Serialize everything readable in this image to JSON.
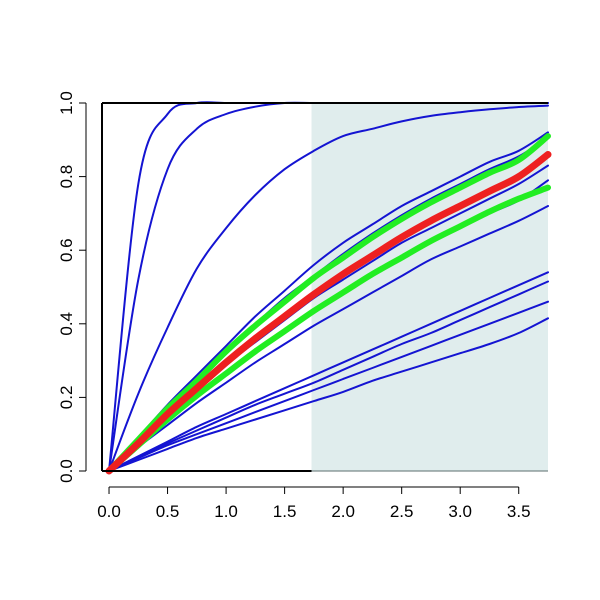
{
  "chart_data": {
    "type": "line",
    "title": "",
    "xlabel": "",
    "ylabel": "",
    "xlim": [
      -0.06,
      3.75
    ],
    "ylim": [
      0,
      1
    ],
    "grid": false,
    "legend": "none",
    "x_ticks": [
      0.0,
      0.5,
      1.0,
      1.5,
      2.0,
      2.5,
      3.0,
      3.5
    ],
    "x_tick_labels": [
      "0.0",
      "0.5",
      "1.0",
      "1.5",
      "2.0",
      "2.5",
      "3.0",
      "3.5"
    ],
    "y_ticks": [
      0.0,
      0.2,
      0.4,
      0.6,
      0.8,
      1.0
    ],
    "y_tick_labels": [
      "0.0",
      "0.2",
      "0.4",
      "0.6",
      "0.8",
      "1.0"
    ],
    "shaded_region": {
      "x_from": 1.73,
      "x_to": 3.75,
      "color": "#e0eded"
    },
    "colors": {
      "curves": "#1414d2",
      "band": "#22ee22",
      "mean": "#ee2020"
    },
    "x": [
      0.0,
      0.25,
      0.5,
      0.75,
      1.0,
      1.25,
      1.5,
      1.75,
      2.0,
      2.25,
      2.5,
      2.75,
      3.0,
      3.25,
      3.5,
      3.75
    ],
    "curves": [
      {
        "style": "thin",
        "y": [
          0.0,
          0.78,
          0.97,
          1.0,
          1.0,
          1.0,
          1.0,
          1.0,
          1.0,
          1.0,
          1.0,
          1.0,
          1.0,
          1.0,
          1.0,
          1.0
        ]
      },
      {
        "style": "thin",
        "y": [
          0.0,
          0.52,
          0.82,
          0.93,
          0.97,
          0.99,
          1.0,
          1.0,
          1.0,
          1.0,
          1.0,
          1.0,
          1.0,
          1.0,
          1.0,
          1.0
        ]
      },
      {
        "style": "thin",
        "y": [
          0.0,
          0.21,
          0.39,
          0.55,
          0.66,
          0.75,
          0.82,
          0.87,
          0.91,
          0.93,
          0.95,
          0.965,
          0.975,
          0.983,
          0.989,
          0.993
        ]
      },
      {
        "style": "thin",
        "y": [
          0.0,
          0.09,
          0.18,
          0.26,
          0.34,
          0.42,
          0.49,
          0.56,
          0.62,
          0.67,
          0.72,
          0.76,
          0.8,
          0.84,
          0.87,
          0.92
        ]
      },
      {
        "style": "thin",
        "y": [
          0.0,
          0.085,
          0.17,
          0.25,
          0.33,
          0.4,
          0.47,
          0.53,
          0.59,
          0.645,
          0.695,
          0.74,
          0.78,
          0.82,
          0.855,
          0.905
        ]
      },
      {
        "style": "thin",
        "y": [
          0.0,
          0.075,
          0.15,
          0.22,
          0.29,
          0.35,
          0.41,
          0.47,
          0.52,
          0.57,
          0.62,
          0.66,
          0.7,
          0.74,
          0.78,
          0.83
        ]
      },
      {
        "style": "thin",
        "y": [
          0.0,
          0.07,
          0.135,
          0.2,
          0.26,
          0.32,
          0.375,
          0.43,
          0.48,
          0.53,
          0.575,
          0.62,
          0.66,
          0.7,
          0.735,
          0.79
        ]
      },
      {
        "style": "thin",
        "y": [
          0.0,
          0.065,
          0.125,
          0.185,
          0.24,
          0.295,
          0.345,
          0.395,
          0.44,
          0.485,
          0.53,
          0.575,
          0.61,
          0.645,
          0.68,
          0.72
        ]
      },
      {
        "style": "thin",
        "y": [
          0.0,
          0.04,
          0.08,
          0.12,
          0.155,
          0.19,
          0.225,
          0.26,
          0.295,
          0.33,
          0.365,
          0.4,
          0.435,
          0.47,
          0.505,
          0.54
        ]
      },
      {
        "style": "thin",
        "y": [
          0.0,
          0.038,
          0.075,
          0.11,
          0.145,
          0.18,
          0.21,
          0.24,
          0.275,
          0.31,
          0.345,
          0.375,
          0.41,
          0.445,
          0.48,
          0.515
        ]
      },
      {
        "style": "thin",
        "y": [
          0.0,
          0.035,
          0.07,
          0.1,
          0.13,
          0.16,
          0.19,
          0.22,
          0.25,
          0.28,
          0.31,
          0.34,
          0.37,
          0.4,
          0.43,
          0.46
        ]
      },
      {
        "style": "thin",
        "y": [
          0.0,
          0.03,
          0.06,
          0.09,
          0.115,
          0.14,
          0.165,
          0.19,
          0.215,
          0.245,
          0.27,
          0.295,
          0.32,
          0.345,
          0.375,
          0.415
        ]
      },
      {
        "style": "band",
        "y": [
          0.0,
          0.085,
          0.17,
          0.245,
          0.325,
          0.395,
          0.46,
          0.525,
          0.58,
          0.635,
          0.685,
          0.73,
          0.77,
          0.81,
          0.845,
          0.91
        ]
      },
      {
        "style": "band",
        "y": [
          0.0,
          0.07,
          0.14,
          0.205,
          0.265,
          0.325,
          0.38,
          0.435,
          0.485,
          0.535,
          0.58,
          0.625,
          0.665,
          0.705,
          0.74,
          0.77
        ]
      },
      {
        "style": "mean",
        "y": [
          0.0,
          0.075,
          0.155,
          0.225,
          0.295,
          0.36,
          0.42,
          0.48,
          0.535,
          0.585,
          0.635,
          0.68,
          0.72,
          0.76,
          0.8,
          0.86
        ]
      }
    ]
  }
}
